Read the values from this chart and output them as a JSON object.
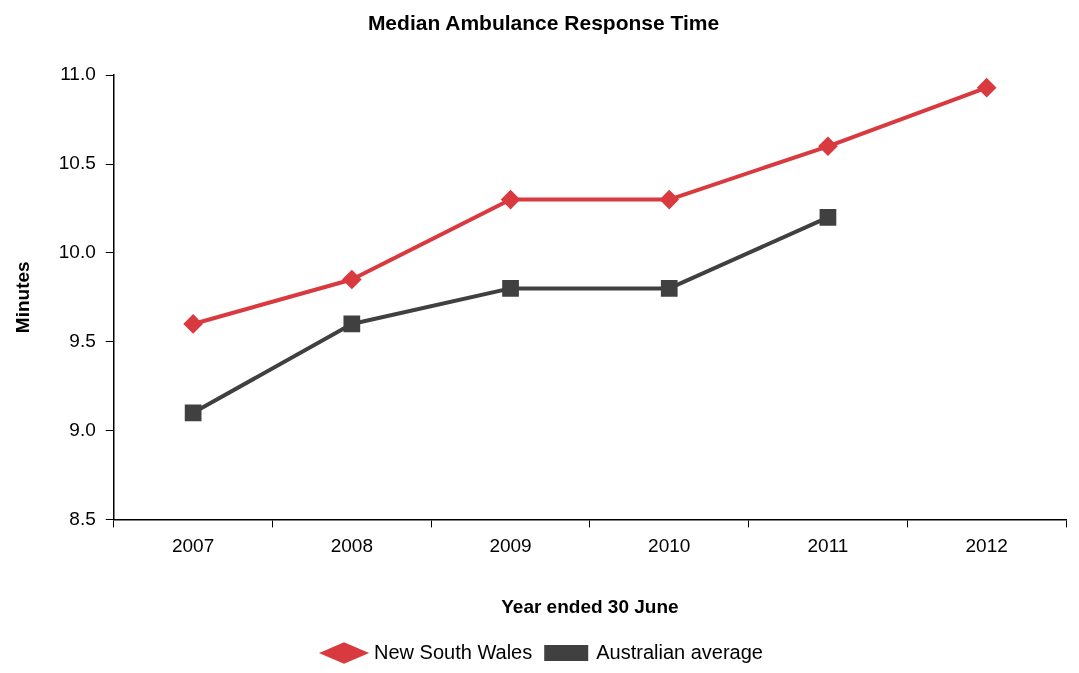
{
  "chart_data": {
    "type": "line",
    "title": "Median Ambulance Response Time",
    "xlabel": "Year ended 30 June",
    "ylabel": "Minutes",
    "categories": [
      "2007",
      "2008",
      "2009",
      "2010",
      "2011",
      "2012"
    ],
    "series": [
      {
        "name": "New South Wales",
        "color": "#d93a3f",
        "marker": "diamond",
        "values": [
          9.6,
          9.85,
          10.3,
          10.3,
          10.6,
          10.93
        ]
      },
      {
        "name": "Australian average",
        "color": "#404040",
        "marker": "square",
        "values": [
          9.1,
          9.6,
          9.8,
          9.8,
          10.2,
          null
        ]
      }
    ],
    "ylim": [
      8.5,
      11.0
    ],
    "yticks": [
      {
        "value": 8.5,
        "label": "8.5"
      },
      {
        "value": 9.0,
        "label": "9.0"
      },
      {
        "value": 9.5,
        "label": "9.5"
      },
      {
        "value": 10.0,
        "label": "10.0"
      },
      {
        "value": 10.5,
        "label": "10.5"
      },
      {
        "value": 11.0,
        "label": "11.0"
      }
    ],
    "grid": false,
    "legend": "bottom",
    "line_style": "solid"
  }
}
